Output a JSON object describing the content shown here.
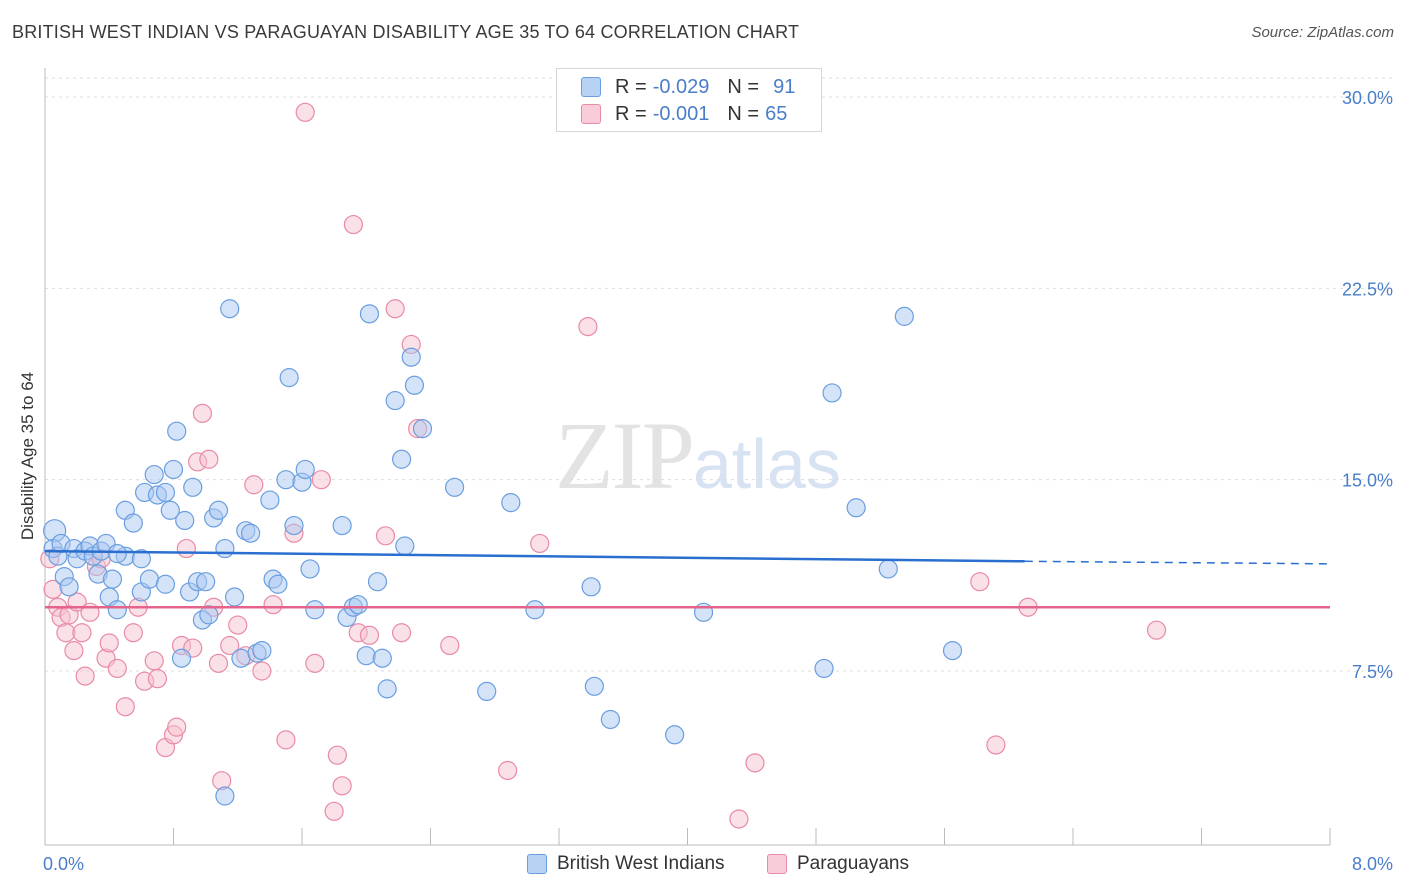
{
  "header": {
    "title": "BRITISH WEST INDIAN VS PARAGUAYAN DISABILITY AGE 35 TO 64 CORRELATION CHART",
    "source": "Source: ZipAtlas.com"
  },
  "watermark": {
    "zip": "ZIP",
    "atlas": "atlas"
  },
  "colors": {
    "blue_fill": "#a9c8f2",
    "blue_stroke": "#6a9ee0",
    "blue_line": "#2a6fcf",
    "pink_fill": "#f6c1cf",
    "pink_stroke": "#e98aa6",
    "pink_line": "#e4638a",
    "tick_label": "#4a7ec9",
    "grid": "#dddddd"
  },
  "legend": {
    "rows": [
      {
        "r_label": "R =",
        "r_value": "-0.029",
        "n_label": "N =",
        "n_value": "91"
      },
      {
        "r_label": "R =",
        "r_value": "-0.001",
        "n_label": "N =",
        "n_value": "65"
      }
    ]
  },
  "bottom_legend": {
    "series1": "British West Indians",
    "series2": "Paraguayans"
  },
  "chart_data": {
    "type": "scatter",
    "title": "BRITISH WEST INDIAN VS PARAGUAYAN DISABILITY AGE 35 TO 64 CORRELATION CHART",
    "xlabel": "",
    "ylabel": "Disability Age 35 to 64",
    "xlim": [
      0,
      8
    ],
    "ylim": [
      0,
      30
    ],
    "x_tick_labels": [
      {
        "value": 0,
        "label": "0.0%"
      },
      {
        "value": 8,
        "label": "8.0%"
      }
    ],
    "y_tick_labels": [
      {
        "value": 7.5,
        "label": "7.5%"
      },
      {
        "value": 15,
        "label": "15.0%"
      },
      {
        "value": 22.5,
        "label": "22.5%"
      },
      {
        "value": 30,
        "label": "30.0%"
      }
    ],
    "x_minor_ticks": [
      0.8,
      1.6,
      2.4,
      3.2,
      4.0,
      4.8,
      5.6,
      6.4,
      7.2,
      8.0
    ],
    "grid": true,
    "series": [
      {
        "name": "British West Indians",
        "color": "blue",
        "trend": {
          "x0": 0,
          "y0": 12.2,
          "x1": 6.1,
          "y1": 11.8,
          "x_dash_end": 8,
          "y_dash_end": 11.7
        },
        "points": [
          [
            0.06,
            13.0
          ],
          [
            0.05,
            12.3
          ],
          [
            0.08,
            12.0
          ],
          [
            0.1,
            12.5
          ],
          [
            0.12,
            11.2
          ],
          [
            0.15,
            10.8
          ],
          [
            0.18,
            12.3
          ],
          [
            0.2,
            11.9
          ],
          [
            0.25,
            12.2
          ],
          [
            0.28,
            12.4
          ],
          [
            0.3,
            12.0
          ],
          [
            0.33,
            11.3
          ],
          [
            0.35,
            12.2
          ],
          [
            0.38,
            12.5
          ],
          [
            0.4,
            10.4
          ],
          [
            0.42,
            11.1
          ],
          [
            0.45,
            9.9
          ],
          [
            0.5,
            12.0
          ],
          [
            0.5,
            13.8
          ],
          [
            0.55,
            13.3
          ],
          [
            0.6,
            10.6
          ],
          [
            0.62,
            14.5
          ],
          [
            0.65,
            11.1
          ],
          [
            0.68,
            15.2
          ],
          [
            0.7,
            14.4
          ],
          [
            0.75,
            14.5
          ],
          [
            0.78,
            13.8
          ],
          [
            0.8,
            15.4
          ],
          [
            0.82,
            16.9
          ],
          [
            0.85,
            8.0
          ],
          [
            0.87,
            13.4
          ],
          [
            0.9,
            10.6
          ],
          [
            0.92,
            14.7
          ],
          [
            0.95,
            11.0
          ],
          [
            0.98,
            9.5
          ],
          [
            1.0,
            11.0
          ],
          [
            1.02,
            9.7
          ],
          [
            1.05,
            13.5
          ],
          [
            1.08,
            13.8
          ],
          [
            1.12,
            12.3
          ],
          [
            1.15,
            21.7
          ],
          [
            1.18,
            10.4
          ],
          [
            1.22,
            8.0
          ],
          [
            1.25,
            13.0
          ],
          [
            1.28,
            12.9
          ],
          [
            1.32,
            8.2
          ],
          [
            1.35,
            8.3
          ],
          [
            1.4,
            14.2
          ],
          [
            1.42,
            11.1
          ],
          [
            1.45,
            10.9
          ],
          [
            1.5,
            15.0
          ],
          [
            1.52,
            19.0
          ],
          [
            1.55,
            13.2
          ],
          [
            1.6,
            14.9
          ],
          [
            1.62,
            15.4
          ],
          [
            1.65,
            11.5
          ],
          [
            1.68,
            9.9
          ],
          [
            1.85,
            13.2
          ],
          [
            1.88,
            9.6
          ],
          [
            1.92,
            10.0
          ],
          [
            1.95,
            10.1
          ],
          [
            2.0,
            8.1
          ],
          [
            2.02,
            21.5
          ],
          [
            2.07,
            11.0
          ],
          [
            2.1,
            8.0
          ],
          [
            2.13,
            6.8
          ],
          [
            2.18,
            18.1
          ],
          [
            2.22,
            15.8
          ],
          [
            2.24,
            12.4
          ],
          [
            2.28,
            19.8
          ],
          [
            2.3,
            18.7
          ],
          [
            2.35,
            17.0
          ],
          [
            2.55,
            14.7
          ],
          [
            2.75,
            6.7
          ],
          [
            2.9,
            14.1
          ],
          [
            3.05,
            9.9
          ],
          [
            3.4,
            10.8
          ],
          [
            3.42,
            6.9
          ],
          [
            3.52,
            5.6
          ],
          [
            3.92,
            5.0
          ],
          [
            4.1,
            9.8
          ],
          [
            4.9,
            18.4
          ],
          [
            4.85,
            7.6
          ],
          [
            5.05,
            13.9
          ],
          [
            5.25,
            11.5
          ],
          [
            5.35,
            21.4
          ],
          [
            5.65,
            8.3
          ],
          [
            1.12,
            2.6
          ],
          [
            0.75,
            10.9
          ],
          [
            0.6,
            11.9
          ],
          [
            0.45,
            12.1
          ]
        ]
      },
      {
        "name": "Paraguayans",
        "color": "pink",
        "trend": {
          "x0": 0,
          "y0": 10.0,
          "x1": 8,
          "y1": 10.0
        },
        "points": [
          [
            0.03,
            11.9
          ],
          [
            0.05,
            10.7
          ],
          [
            0.08,
            10.0
          ],
          [
            0.1,
            9.6
          ],
          [
            0.13,
            9.0
          ],
          [
            0.15,
            9.7
          ],
          [
            0.18,
            8.3
          ],
          [
            0.2,
            10.2
          ],
          [
            0.23,
            9.0
          ],
          [
            0.25,
            7.3
          ],
          [
            0.28,
            9.8
          ],
          [
            0.32,
            11.6
          ],
          [
            0.35,
            11.9
          ],
          [
            0.38,
            8.0
          ],
          [
            0.4,
            8.6
          ],
          [
            0.45,
            7.6
          ],
          [
            0.5,
            6.1
          ],
          [
            0.55,
            9.0
          ],
          [
            0.58,
            10.0
          ],
          [
            0.62,
            7.1
          ],
          [
            0.68,
            7.9
          ],
          [
            0.7,
            7.2
          ],
          [
            0.75,
            4.5
          ],
          [
            0.8,
            5.0
          ],
          [
            0.82,
            5.3
          ],
          [
            0.85,
            8.5
          ],
          [
            0.88,
            12.3
          ],
          [
            0.92,
            8.4
          ],
          [
            0.95,
            15.7
          ],
          [
            0.98,
            17.6
          ],
          [
            1.02,
            15.8
          ],
          [
            1.05,
            10.0
          ],
          [
            1.08,
            7.8
          ],
          [
            1.1,
            3.2
          ],
          [
            1.15,
            8.5
          ],
          [
            1.2,
            9.3
          ],
          [
            1.25,
            8.1
          ],
          [
            1.3,
            14.8
          ],
          [
            1.35,
            7.5
          ],
          [
            1.42,
            10.1
          ],
          [
            1.5,
            4.8
          ],
          [
            1.55,
            12.9
          ],
          [
            1.62,
            29.4
          ],
          [
            1.68,
            7.8
          ],
          [
            1.72,
            15.0
          ],
          [
            1.8,
            2.0
          ],
          [
            1.82,
            4.2
          ],
          [
            1.85,
            3.0
          ],
          [
            1.92,
            25.0
          ],
          [
            1.95,
            9.0
          ],
          [
            2.02,
            8.9
          ],
          [
            2.12,
            12.8
          ],
          [
            2.18,
            21.7
          ],
          [
            2.22,
            9.0
          ],
          [
            2.28,
            20.3
          ],
          [
            2.32,
            17.0
          ],
          [
            2.52,
            8.5
          ],
          [
            2.88,
            3.6
          ],
          [
            3.08,
            12.5
          ],
          [
            3.38,
            21.0
          ],
          [
            4.42,
            3.9
          ],
          [
            4.32,
            1.7
          ],
          [
            5.82,
            11.0
          ],
          [
            5.92,
            4.6
          ],
          [
            6.12,
            10.0
          ],
          [
            6.92,
            9.1
          ]
        ]
      }
    ]
  }
}
